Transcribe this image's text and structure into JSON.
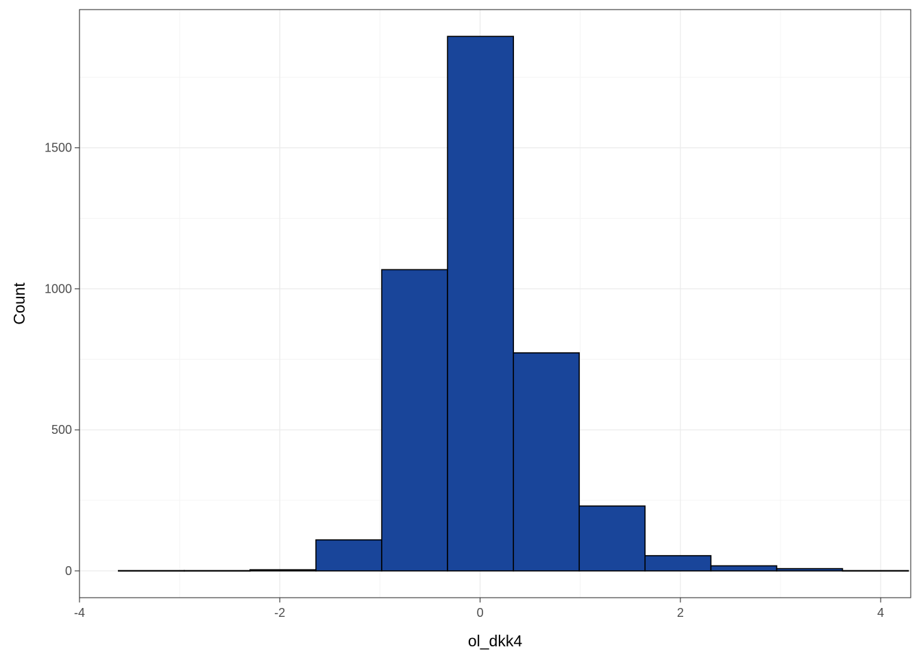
{
  "chart_data": {
    "type": "bar",
    "subtype": "histogram",
    "title": "",
    "xlabel": "ol_dkk4",
    "ylabel": "Count",
    "xlim": [
      -4,
      4.3
    ],
    "ylim": [
      -95,
      1990
    ],
    "x_ticks": [
      -4,
      -2,
      0,
      2,
      4
    ],
    "y_ticks": [
      0,
      500,
      1000,
      1500
    ],
    "x_minor_ticks": [
      -3,
      -1,
      1,
      3
    ],
    "y_minor_ticks": [
      250,
      750,
      1250,
      1750
    ],
    "grid": true,
    "legend": "none",
    "bin_width": 0.6573,
    "bins": [
      {
        "x0": -3.611,
        "x1": -2.954,
        "count": 1
      },
      {
        "x0": -2.954,
        "x1": -2.297,
        "count": 1
      },
      {
        "x0": -2.297,
        "x1": -1.639,
        "count": 4
      },
      {
        "x0": -1.639,
        "x1": -0.982,
        "count": 110
      },
      {
        "x0": -0.982,
        "x1": -0.325,
        "count": 1068
      },
      {
        "x0": -0.325,
        "x1": 0.333,
        "count": 1895
      },
      {
        "x0": 0.333,
        "x1": 0.99,
        "count": 773
      },
      {
        "x0": 0.99,
        "x1": 1.647,
        "count": 230
      },
      {
        "x0": 1.647,
        "x1": 2.305,
        "count": 54
      },
      {
        "x0": 2.305,
        "x1": 2.962,
        "count": 18
      },
      {
        "x0": 2.962,
        "x1": 3.619,
        "count": 8
      },
      {
        "x0": 3.619,
        "x1": 4.277,
        "count": 1
      }
    ],
    "colors": {
      "bar_fill": "#19459A",
      "bar_stroke": "#000000",
      "grid_major": "#EBEBEB",
      "grid_minor": "#F4F4F4",
      "panel_border": "#333333"
    }
  }
}
